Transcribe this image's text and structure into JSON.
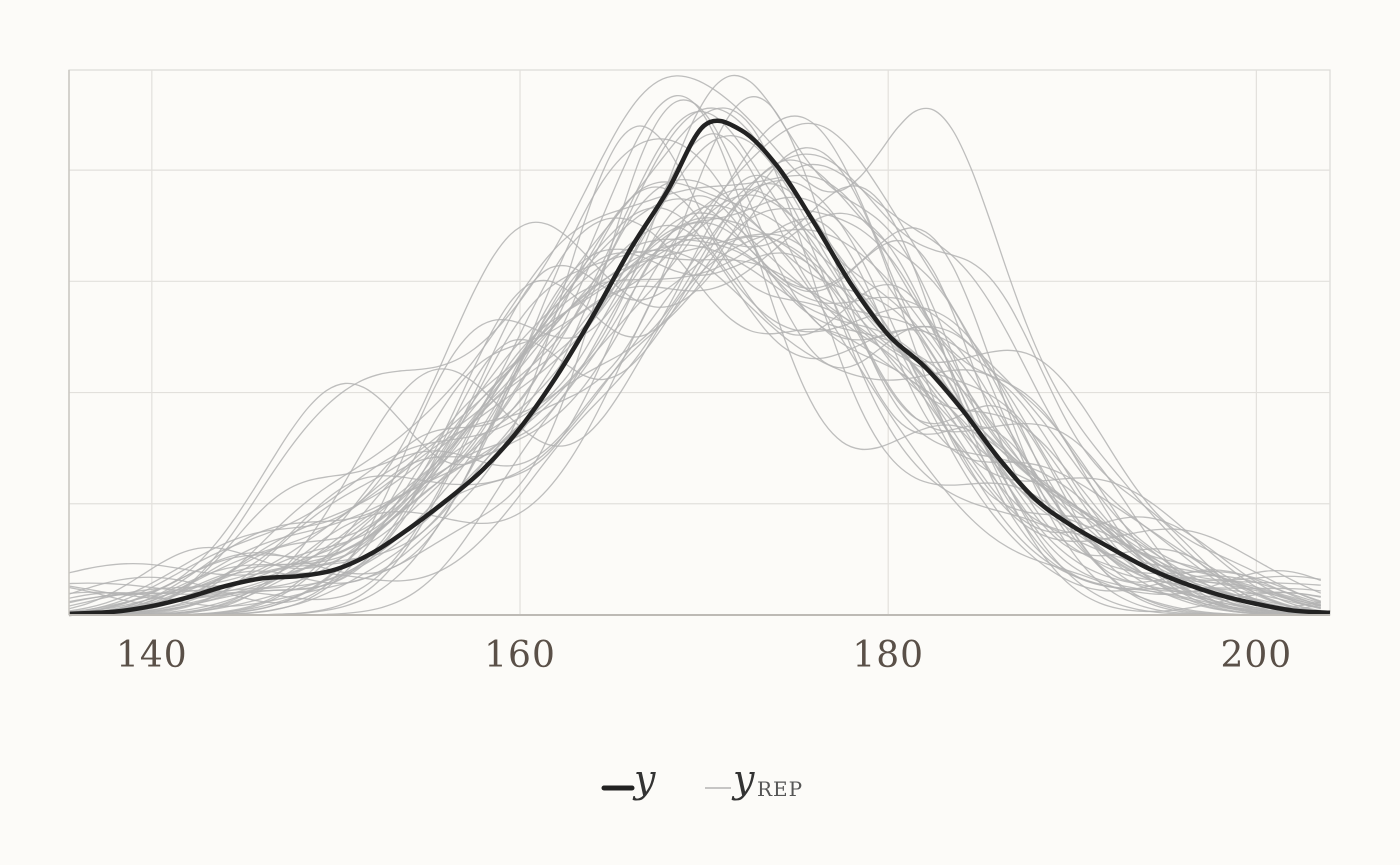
{
  "chart_data": {
    "type": "line",
    "title": "",
    "xlabel": "",
    "ylabel": "",
    "xlim": [
      135.5,
      204
    ],
    "ylim": [
      0,
      0.049
    ],
    "x_ticks": [
      "140",
      "160",
      "180",
      "200"
    ],
    "x_tick_values": [
      140,
      160,
      180,
      200
    ],
    "y_grid_values": [
      0.01,
      0.02,
      0.03,
      0.04
    ],
    "grid": true,
    "y_tick_labels_shown": false,
    "legend": {
      "placement": "bottom-center",
      "entries": [
        {
          "label": "y",
          "color": "#222222",
          "style": "thick"
        },
        {
          "label": "y",
          "subscript": "REP",
          "color": "#b3b3b3",
          "style": "thin"
        }
      ]
    },
    "observed": {
      "name": "y",
      "color": "#222222",
      "x": [
        135.5,
        138,
        140,
        142,
        144,
        146,
        148,
        150,
        152,
        154,
        156,
        158,
        160,
        162,
        164,
        166,
        168,
        170,
        172,
        174,
        176,
        178,
        180,
        182,
        184,
        186,
        188,
        190,
        192,
        194,
        196,
        198,
        200,
        202,
        204
      ],
      "y": [
        0.0001,
        0.0003,
        0.0008,
        0.0016,
        0.0026,
        0.0033,
        0.0035,
        0.0041,
        0.0056,
        0.0078,
        0.0103,
        0.0131,
        0.0168,
        0.0215,
        0.027,
        0.0329,
        0.0381,
        0.044,
        0.0436,
        0.0403,
        0.0352,
        0.0297,
        0.0252,
        0.0223,
        0.0185,
        0.0141,
        0.0104,
        0.008,
        0.0061,
        0.0043,
        0.0029,
        0.0018,
        0.001,
        0.0004,
        0.0002
      ]
    },
    "replicates": {
      "name": "yrep",
      "color": "#b3b3b3",
      "count": 50,
      "mean": 171,
      "sd": 11,
      "peak_range": [
        0.036,
        0.049
      ]
    }
  }
}
